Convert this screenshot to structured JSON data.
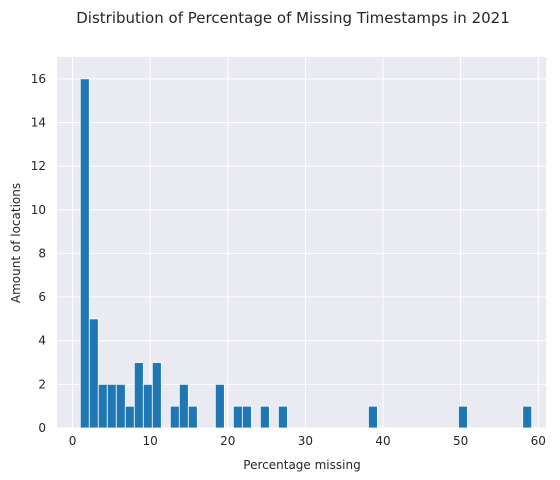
{
  "chart_data": {
    "type": "bar",
    "title": "Distribution of Percentage of Missing Timestamps in 2021",
    "xlabel": "Percentage missing",
    "ylabel": "Amount of locations",
    "xlim": [
      -2,
      61
    ],
    "ylim": [
      0,
      17
    ],
    "xticks": [
      0,
      10,
      20,
      30,
      40,
      50,
      60
    ],
    "yticks": [
      0,
      2,
      4,
      6,
      8,
      10,
      12,
      14,
      16
    ],
    "grid": true,
    "bar_color": "#1f77b4",
    "background_color": "#eaeaf2",
    "grid_color": "#ffffff",
    "bin_width": 1.16,
    "bins": [
      {
        "x": 1.0,
        "count": 16
      },
      {
        "x": 2.16,
        "count": 5
      },
      {
        "x": 3.32,
        "count": 2
      },
      {
        "x": 4.48,
        "count": 2
      },
      {
        "x": 5.64,
        "count": 2
      },
      {
        "x": 6.8,
        "count": 1
      },
      {
        "x": 7.96,
        "count": 3
      },
      {
        "x": 9.12,
        "count": 2
      },
      {
        "x": 10.28,
        "count": 3
      },
      {
        "x": 12.6,
        "count": 1
      },
      {
        "x": 13.76,
        "count": 2
      },
      {
        "x": 14.92,
        "count": 1
      },
      {
        "x": 18.4,
        "count": 2
      },
      {
        "x": 20.72,
        "count": 1
      },
      {
        "x": 21.88,
        "count": 1
      },
      {
        "x": 24.2,
        "count": 1
      },
      {
        "x": 26.52,
        "count": 1
      },
      {
        "x": 38.12,
        "count": 1
      },
      {
        "x": 49.72,
        "count": 1
      },
      {
        "x": 58.0,
        "count": 1
      }
    ]
  }
}
